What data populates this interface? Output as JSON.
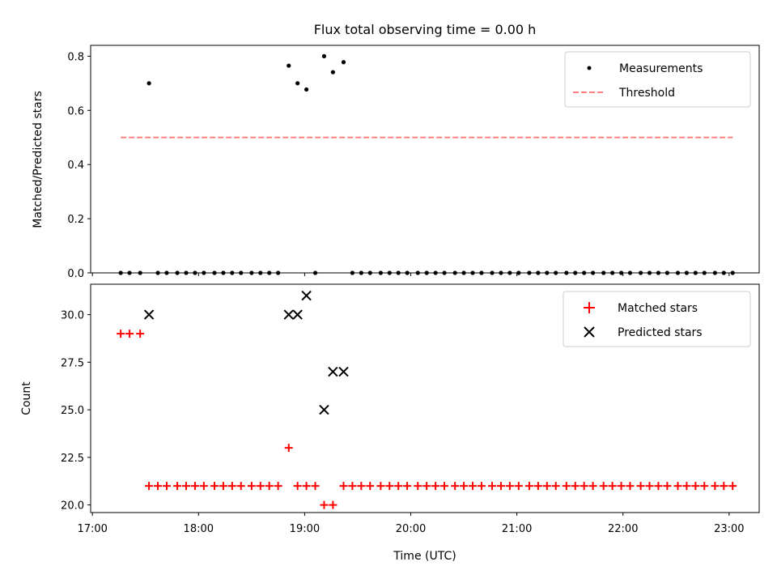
{
  "chart_data": [
    {
      "type": "scatter",
      "title": "Flux total observing time = 0.00 h",
      "xlabel": "",
      "ylabel": "Matched/Predicted stars",
      "xlim": [
        "16:59",
        "23:17"
      ],
      "ylim": [
        0,
        0.84
      ],
      "yticks": [
        "0.0",
        "0.2",
        "0.4",
        "0.6",
        "0.8"
      ],
      "xticks": [
        "17:00",
        "18:00",
        "19:00",
        "20:00",
        "21:00",
        "22:00",
        "23:00"
      ],
      "legend_position": "top-right",
      "series": [
        {
          "name": "Measurements",
          "marker": "dot",
          "color": "#000000",
          "x": [
            "17:16",
            "17:21",
            "17:27",
            "17:32",
            "17:37",
            "17:42",
            "17:48",
            "17:53",
            "17:58",
            "18:03",
            "18:09",
            "18:14",
            "18:19",
            "18:24",
            "18:30",
            "18:35",
            "18:40",
            "18:45",
            "18:51",
            "18:56",
            "19:01",
            "19:06",
            "19:11",
            "19:16",
            "19:22",
            "19:27",
            "19:32",
            "19:37",
            "19:43",
            "19:48",
            "19:53",
            "19:58",
            "20:04",
            "20:09",
            "20:14",
            "20:19",
            "20:25",
            "20:30",
            "20:35",
            "20:40",
            "20:46",
            "20:51",
            "20:56",
            "21:01",
            "21:07",
            "21:12",
            "21:17",
            "21:22",
            "21:28",
            "21:33",
            "21:38",
            "21:43",
            "21:49",
            "21:54",
            "21:59",
            "22:04",
            "22:10",
            "22:15",
            "22:20",
            "22:25",
            "22:31",
            "22:36",
            "22:41",
            "22:46",
            "22:52",
            "22:57",
            "23:02"
          ],
          "y": [
            0,
            0,
            0,
            0.7,
            0,
            0,
            0,
            0,
            0,
            0,
            0,
            0,
            0,
            0,
            0,
            0,
            0,
            0,
            0.765,
            0.7,
            0.677,
            0,
            0.8,
            0.741,
            0.778,
            0,
            0,
            0,
            0,
            0,
            0,
            0,
            0,
            0,
            0,
            0,
            0,
            0,
            0,
            0,
            0,
            0,
            0,
            0,
            0,
            0,
            0,
            0,
            0,
            0,
            0,
            0,
            0,
            0,
            0,
            0,
            0,
            0,
            0,
            0,
            0,
            0,
            0,
            0,
            0,
            0,
            0
          ]
        },
        {
          "name": "Threshold",
          "style": "dashed",
          "color": "#ff7f7f",
          "x": [
            "17:16",
            "23:02"
          ],
          "y": [
            0.5,
            0.5
          ]
        }
      ]
    },
    {
      "type": "scatter",
      "title": "",
      "xlabel": "Time (UTC)",
      "ylabel": "Count",
      "xlim": [
        "16:59",
        "23:17"
      ],
      "ylim": [
        19.6,
        31.6
      ],
      "yticks": [
        "20.0",
        "22.5",
        "25.0",
        "27.5",
        "30.0"
      ],
      "xticks": [
        "17:00",
        "18:00",
        "19:00",
        "20:00",
        "21:00",
        "22:00",
        "23:00"
      ],
      "legend_position": "top-right",
      "series": [
        {
          "name": "Matched stars",
          "marker": "plus",
          "color": "#ff0000",
          "x": [
            "17:16",
            "17:21",
            "17:27",
            "17:32",
            "17:37",
            "17:42",
            "17:48",
            "17:53",
            "17:58",
            "18:03",
            "18:09",
            "18:14",
            "18:19",
            "18:24",
            "18:30",
            "18:35",
            "18:40",
            "18:45",
            "18:51",
            "18:56",
            "19:01",
            "19:06",
            "19:11",
            "19:16",
            "19:22",
            "19:27",
            "19:32",
            "19:37",
            "19:43",
            "19:48",
            "19:53",
            "19:58",
            "20:04",
            "20:09",
            "20:14",
            "20:19",
            "20:25",
            "20:30",
            "20:35",
            "20:40",
            "20:46",
            "20:51",
            "20:56",
            "21:01",
            "21:07",
            "21:12",
            "21:17",
            "21:22",
            "21:28",
            "21:33",
            "21:38",
            "21:43",
            "21:49",
            "21:54",
            "21:59",
            "22:04",
            "22:10",
            "22:15",
            "22:20",
            "22:25",
            "22:31",
            "22:36",
            "22:41",
            "22:46",
            "22:52",
            "22:57",
            "23:02"
          ],
          "y": [
            29,
            29,
            29,
            21,
            21,
            21,
            21,
            21,
            21,
            21,
            21,
            21,
            21,
            21,
            21,
            21,
            21,
            21,
            23,
            21,
            21,
            21,
            20,
            20,
            21,
            21,
            21,
            21,
            21,
            21,
            21,
            21,
            21,
            21,
            21,
            21,
            21,
            21,
            21,
            21,
            21,
            21,
            21,
            21,
            21,
            21,
            21,
            21,
            21,
            21,
            21,
            21,
            21,
            21,
            21,
            21,
            21,
            21,
            21,
            21,
            21,
            21,
            21,
            21,
            21,
            21,
            21
          ]
        },
        {
          "name": "Predicted stars",
          "marker": "x",
          "color": "#000000",
          "x": [
            "17:32",
            "18:51",
            "18:56",
            "19:01",
            "19:11",
            "19:16",
            "19:22"
          ],
          "y": [
            30,
            30,
            30,
            31,
            25,
            27,
            27
          ]
        }
      ]
    }
  ]
}
